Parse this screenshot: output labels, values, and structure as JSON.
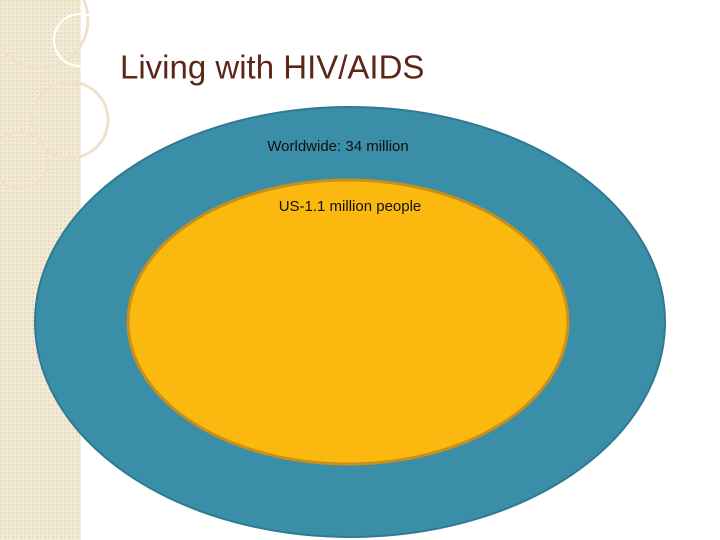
{
  "header": {
    "title": "Living with HIV/AIDS"
  },
  "nodes": [
    {
      "label": "Worldwide: 34 million"
    },
    {
      "label": "US-1.1 million people"
    }
  ]
}
